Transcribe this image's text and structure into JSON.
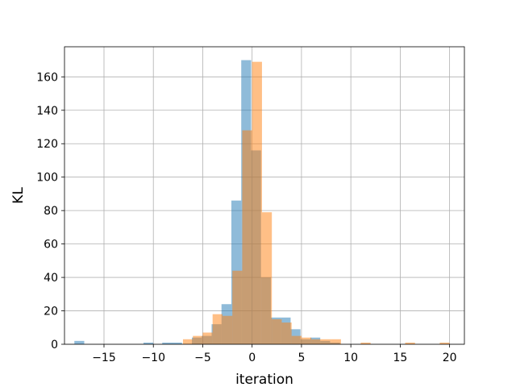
{
  "chart_data": {
    "type": "bar",
    "subtype": "overlapping-histogram",
    "xlabel": "iteration",
    "ylabel": "KL",
    "xlim": [
      -19.0,
      21.5
    ],
    "ylim": [
      0,
      178
    ],
    "xticks": [
      -15,
      -10,
      -5,
      0,
      5,
      10,
      15,
      20
    ],
    "xtick_labels": [
      "−15",
      "−10",
      "−5",
      "0",
      "5",
      "10",
      "15",
      "20"
    ],
    "yticks": [
      0,
      20,
      40,
      60,
      80,
      100,
      120,
      140,
      160
    ],
    "yticklabels": [
      "0",
      "20",
      "40",
      "60",
      "80",
      "100",
      "120",
      "140",
      "160"
    ],
    "grid": true,
    "legend": false,
    "series": [
      {
        "color": "#1f77b4",
        "opacity": 0.5,
        "bins": [
          {
            "x0": -18.0,
            "x1": -17.0,
            "count": 2
          },
          {
            "x0": -11.0,
            "x1": -10.0,
            "count": 1
          },
          {
            "x0": -9.1,
            "x1": -8.1,
            "count": 1
          },
          {
            "x0": -8.1,
            "x1": -7.1,
            "count": 1
          },
          {
            "x0": -6.1,
            "x1": -5.1,
            "count": 4
          },
          {
            "x0": -5.1,
            "x1": -4.1,
            "count": 5
          },
          {
            "x0": -4.1,
            "x1": -3.1,
            "count": 12
          },
          {
            "x0": -3.1,
            "x1": -2.1,
            "count": 24
          },
          {
            "x0": -2.1,
            "x1": -1.1,
            "count": 86
          },
          {
            "x0": -1.1,
            "x1": -0.1,
            "count": 170
          },
          {
            "x0": -0.1,
            "x1": 0.9,
            "count": 116
          },
          {
            "x0": 0.9,
            "x1": 1.9,
            "count": 40
          },
          {
            "x0": 1.9,
            "x1": 2.9,
            "count": 16
          },
          {
            "x0": 2.9,
            "x1": 3.9,
            "count": 16
          },
          {
            "x0": 3.9,
            "x1": 4.9,
            "count": 9
          },
          {
            "x0": 4.9,
            "x1": 5.9,
            "count": 3
          },
          {
            "x0": 5.9,
            "x1": 6.9,
            "count": 4
          },
          {
            "x0": 6.9,
            "x1": 7.9,
            "count": 2
          },
          {
            "x0": 7.9,
            "x1": 8.9,
            "count": 1
          }
        ]
      },
      {
        "color": "#ff7f0e",
        "opacity": 0.5,
        "bins": [
          {
            "x0": -7.0,
            "x1": -6.0,
            "count": 3
          },
          {
            "x0": -6.0,
            "x1": -5.0,
            "count": 5
          },
          {
            "x0": -5.0,
            "x1": -4.0,
            "count": 7
          },
          {
            "x0": -4.0,
            "x1": -3.0,
            "count": 18
          },
          {
            "x0": -3.0,
            "x1": -2.0,
            "count": 17
          },
          {
            "x0": -2.0,
            "x1": -1.0,
            "count": 44
          },
          {
            "x0": -1.0,
            "x1": 0.0,
            "count": 128
          },
          {
            "x0": 0.0,
            "x1": 1.0,
            "count": 169
          },
          {
            "x0": 1.0,
            "x1": 2.0,
            "count": 79
          },
          {
            "x0": 2.0,
            "x1": 3.0,
            "count": 15
          },
          {
            "x0": 3.0,
            "x1": 4.0,
            "count": 13
          },
          {
            "x0": 4.0,
            "x1": 5.0,
            "count": 5
          },
          {
            "x0": 5.0,
            "x1": 6.0,
            "count": 4
          },
          {
            "x0": 6.0,
            "x1": 7.0,
            "count": 3
          },
          {
            "x0": 7.0,
            "x1": 8.0,
            "count": 3
          },
          {
            "x0": 8.0,
            "x1": 9.0,
            "count": 3
          },
          {
            "x0": 11.0,
            "x1": 12.0,
            "count": 1
          },
          {
            "x0": 15.5,
            "x1": 16.5,
            "count": 1
          },
          {
            "x0": 19.0,
            "x1": 20.0,
            "count": 1
          }
        ]
      }
    ]
  }
}
